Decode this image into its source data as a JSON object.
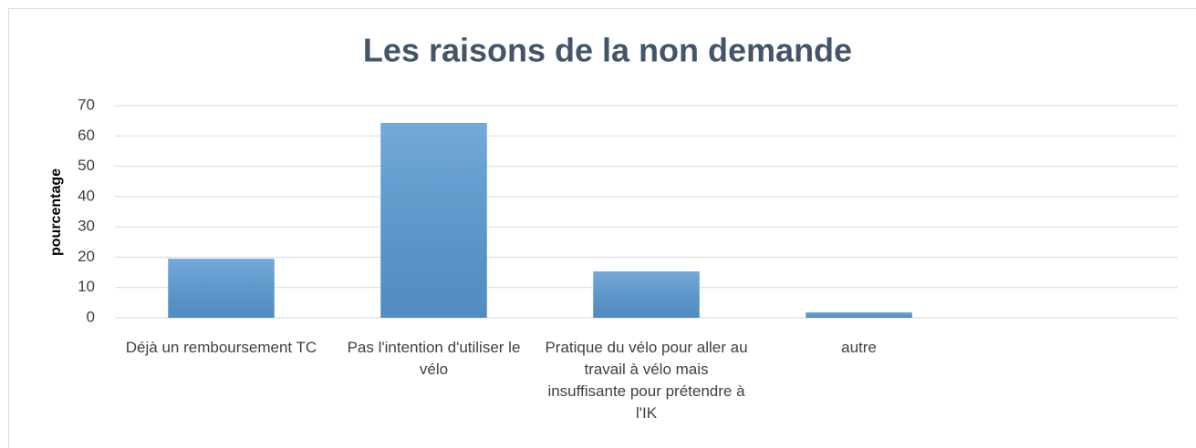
{
  "chart_data": {
    "type": "bar",
    "title": "Les raisons de la non demande",
    "y_label": "pourcentage",
    "categories": [
      "Déjà un remboursement TC",
      "Pas l'intention d'utiliser le vélo",
      "Pratique du vélo pour aller au travail à vélo mais insuffisante pour prétendre à l'IK",
      "autre",
      null
    ],
    "values": [
      19.5,
      64.3,
      15.3,
      1.8,
      null
    ],
    "color": "#5b9bd5",
    "ylim": [
      0,
      70
    ],
    "yticks": [
      0,
      10,
      20,
      30,
      40,
      50,
      60,
      70
    ],
    "grid": true
  }
}
